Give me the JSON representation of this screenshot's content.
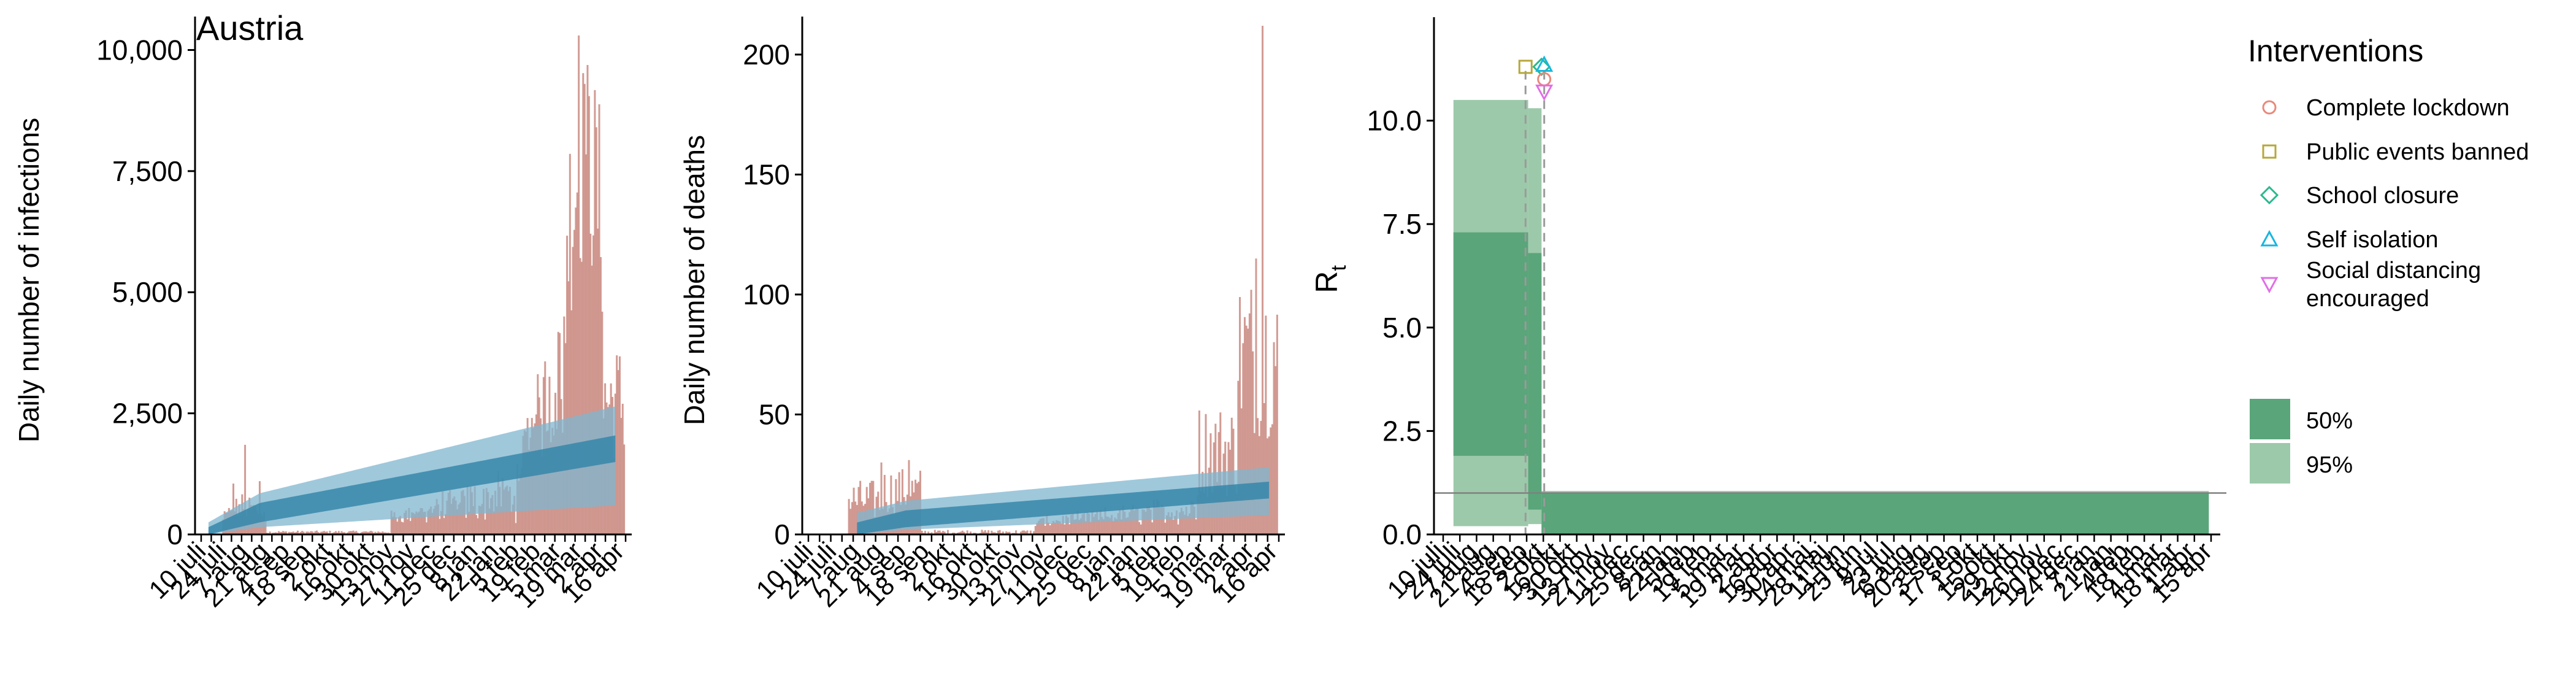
{
  "country": "Austria",
  "colors": {
    "bar": "#c98a80",
    "band95_blue": "#7fb6cf",
    "band50_blue": "#2f83a8",
    "band95_green": "#9cc9aa",
    "band50_green": "#5aa57a",
    "dashed": "#9a9a9a",
    "intervention_lockdown": "#e8897b",
    "intervention_public": "#b7a73a",
    "intervention_school": "#2bb88f",
    "intervention_self": "#19b6df",
    "intervention_social": "#e16ee6"
  },
  "legend": {
    "title": "Interventions",
    "items": [
      {
        "label": "Complete lockdown",
        "shape": "circle-icon",
        "color": "#e8897b"
      },
      {
        "label": "Public events banned",
        "shape": "square-icon",
        "color": "#b7a73a"
      },
      {
        "label": "School closure",
        "shape": "diamond-icon",
        "color": "#2bb88f"
      },
      {
        "label": "Self isolation",
        "shape": "triangle-up-icon",
        "color": "#19b6df"
      },
      {
        "label": "Social distancing",
        "label2": " encouraged",
        "shape": "triangle-down-icon",
        "color": "#e16ee6"
      }
    ],
    "ci": [
      {
        "label": "50%",
        "color": "#5aa57a"
      },
      {
        "label": "95%",
        "color": "#9cc9aa"
      }
    ]
  },
  "chart_data": [
    {
      "type": "bar",
      "title": "Austria",
      "ylabel": "Daily number of infections",
      "xlabel": "",
      "ylim": [
        0,
        10500
      ],
      "yticks": [
        0,
        2500,
        5000,
        7500,
        10000
      ],
      "ytick_labels": [
        "0",
        "2,500",
        "5,000",
        "7,500",
        "10,000"
      ],
      "days": 290,
      "observed_peaks": [
        {
          "day": 22,
          "value": 1050
        },
        {
          "day": 30,
          "value": 1850
        },
        {
          "day": 40,
          "value": 1100
        },
        {
          "day": 258,
          "value": 10300
        },
        {
          "day": 262,
          "value": 9300
        }
      ],
      "estimate_50": {
        "start_day": 5,
        "start_low": 0,
        "start_high": 150,
        "mid_day": 40,
        "mid_low": 250,
        "mid_high": 650,
        "end_day": 284,
        "end_low": 1500,
        "end_high": 2050
      },
      "estimate_95": {
        "start_day": 5,
        "start_low": 0,
        "start_high": 250,
        "mid_day": 40,
        "mid_low": 150,
        "mid_high": 850,
        "end_day": 284,
        "end_low": 600,
        "end_high": 2650
      },
      "xtick_labels": [
        "10 juli",
        "24 juli",
        "7 aug",
        "21 aug",
        "4 sep",
        "18 sep",
        "2 okt",
        "16 okt",
        "30 okt",
        "13 nov",
        "27 nov",
        "11 dec",
        "25 dec",
        "8 jan",
        "22 jan",
        "5 feb",
        "19 feb",
        "5 mar",
        "19 mar",
        "2 apr",
        "16 apr"
      ]
    },
    {
      "type": "bar",
      "ylabel": "Daily number of deaths",
      "xlabel": "",
      "ylim": [
        0,
        212
      ],
      "yticks": [
        0,
        50,
        100,
        150,
        200
      ],
      "ytick_labels": [
        "0",
        "50",
        "100",
        "150",
        "200"
      ],
      "days": 290,
      "observed_peaks": [
        {
          "day": 45,
          "value": 30
        },
        {
          "day": 62,
          "value": 31
        },
        {
          "day": 280,
          "value": 212
        },
        {
          "day": 276,
          "value": 115
        }
      ],
      "estimate_50": {
        "start_day": 30,
        "start_low": 0,
        "start_high": 5,
        "mid_day": 60,
        "mid_low": 3,
        "mid_high": 10,
        "end_day": 284,
        "end_low": 15,
        "end_high": 22
      },
      "estimate_95": {
        "start_day": 30,
        "start_low": 0,
        "start_high": 9,
        "mid_day": 60,
        "mid_low": 2,
        "mid_high": 14,
        "end_day": 284,
        "end_low": 8,
        "end_high": 28
      },
      "xtick_labels": [
        "10 juli",
        "24 juli",
        "7 aug",
        "21 aug",
        "4 sep",
        "18 sep",
        "2 okt",
        "16 okt",
        "30 okt",
        "13 nov",
        "27 nov",
        "11 dec",
        "25 dec",
        "8 jan",
        "22 jan",
        "5 feb",
        "19 feb",
        "5 mar",
        "19 mar",
        "2 apr",
        "16 apr"
      ]
    },
    {
      "type": "area",
      "ylabel": "R",
      "ylabel_sub": "t",
      "xlabel": "",
      "ylim": [
        0,
        12.5
      ],
      "yticks": [
        0,
        2.5,
        5.0,
        7.5,
        10.0
      ],
      "ytick_labels": [
        "0.0",
        "2.5",
        "5.0",
        "7.5",
        "10.0"
      ],
      "reference_line": 1.0,
      "days": 290,
      "steps": [
        {
          "day_start": 5,
          "day_end": 33,
          "low95": 0.2,
          "high95": 10.5,
          "low50": 1.9,
          "high50": 7.3
        },
        {
          "day_start": 33,
          "day_end": 38,
          "low95": 0.25,
          "high95": 10.3,
          "low50": 0.6,
          "high50": 6.8
        },
        {
          "day_start": 38,
          "day_end": 288,
          "low95": 0.0,
          "high95": 1.05,
          "low50": 0.0,
          "high50": 1.0
        }
      ],
      "interventions": [
        {
          "name": "Public events banned",
          "day": 32,
          "y": 11.3,
          "shape": "square-icon"
        },
        {
          "name": "School closure",
          "day": 38,
          "y": 11.3,
          "shape": "diamond-icon"
        },
        {
          "name": "Self isolation",
          "day": 39,
          "y": 11.35,
          "shape": "triangle-up-icon"
        },
        {
          "name": "Complete lockdown",
          "day": 39,
          "y": 11.0,
          "shape": "circle-icon"
        },
        {
          "name": "Social distancing encouraged",
          "day": 39,
          "y": 10.7,
          "shape": "triangle-down-icon"
        }
      ],
      "dashed_lines_days": [
        32,
        39
      ],
      "xtick_labels": [
        "10 juli",
        "24 juli",
        "7 aug",
        "21 aug",
        "4 sep",
        "18 sep",
        "2 okt",
        "16 okt",
        "30 okt",
        "13 nov",
        "27 nov",
        "11 dec",
        "25 dec",
        "8 jan",
        "22 jan",
        "5 feb",
        "19 feb",
        "5 mar",
        "19 mar",
        "2 apr",
        "16 apr",
        "30 apr",
        "14 maj",
        "28 maj",
        "11 jun",
        "25 jun",
        "9 jul",
        "23 jul",
        "6 aug",
        "20 aug",
        "3 sep",
        "17 sep",
        "1 okt",
        "15 okt",
        "29 okt",
        "12 nov",
        "26 nov",
        "10 dec",
        "24 dec",
        "7 jan",
        "21 jan",
        "4 feb",
        "18 feb",
        "4 mar",
        "18 mar",
        "1 apr",
        "15 apr"
      ]
    }
  ]
}
